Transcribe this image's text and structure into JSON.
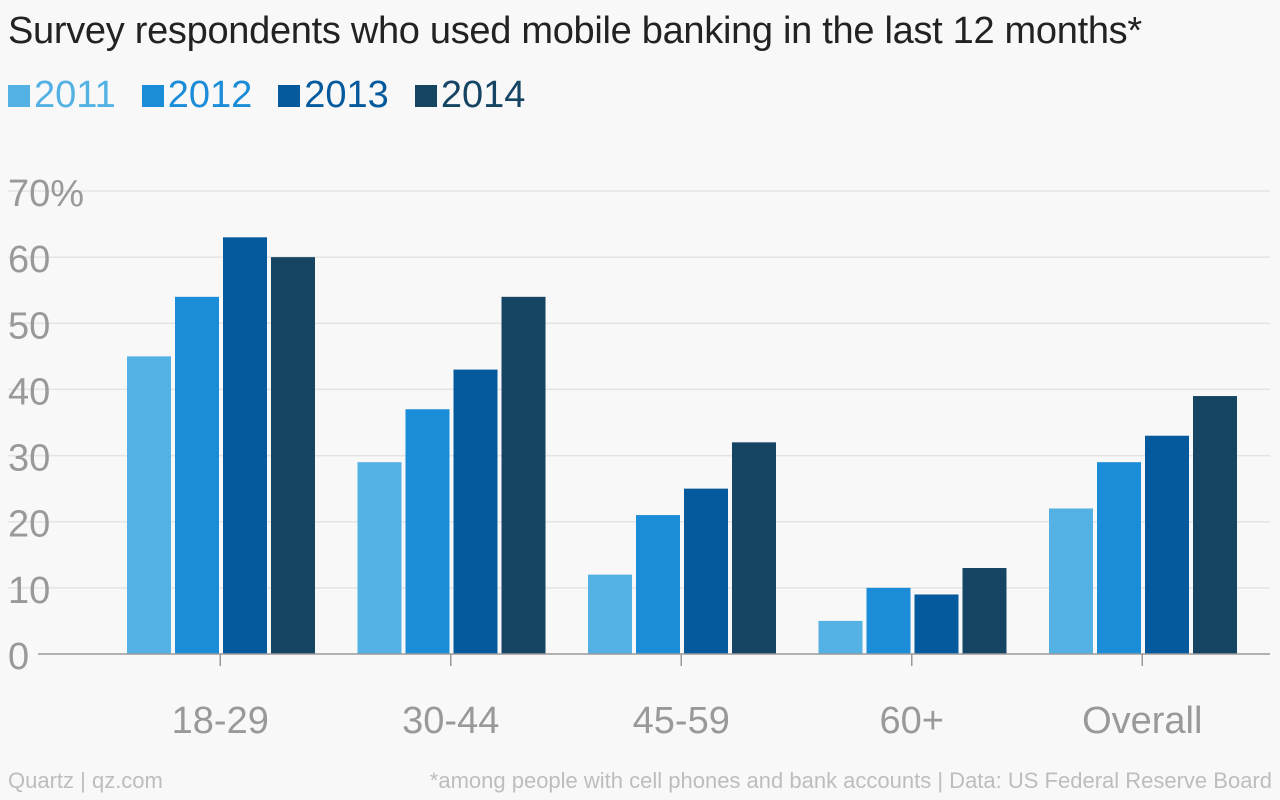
{
  "chart_data": {
    "type": "bar",
    "title": "Survey respondents who used mobile banking in the last 12 months*",
    "categories": [
      "18-29",
      "30-44",
      "45-59",
      "60+",
      "Overall"
    ],
    "series": [
      {
        "name": "2011",
        "color": "#53b1e4",
        "values": [
          45,
          29,
          12,
          5,
          22
        ]
      },
      {
        "name": "2012",
        "color": "#1a8cd8",
        "values": [
          54,
          37,
          21,
          10,
          29
        ]
      },
      {
        "name": "2013",
        "color": "#045a9c",
        "values": [
          63,
          43,
          25,
          9,
          33
        ]
      },
      {
        "name": "2014",
        "color": "#164564",
        "values": [
          60,
          54,
          32,
          13,
          39
        ]
      }
    ],
    "ylim": [
      0,
      70
    ],
    "yticks": [
      0,
      10,
      20,
      30,
      40,
      50,
      60,
      70
    ],
    "ytick_labels": [
      "0",
      "10",
      "20",
      "30",
      "40",
      "50",
      "60",
      "70%"
    ],
    "xlabel": "",
    "ylabel": "",
    "grid": true,
    "legend_position": "top-left"
  },
  "footer": {
    "source_left": "Quartz | qz.com",
    "note_right": "*among people with cell phones and bank accounts | Data: US Federal Reserve Board"
  },
  "colors": {
    "background": "#f8f8f8",
    "gridline": "#e4e4e4",
    "axis": "#999999",
    "tick_label": "#999999",
    "title": "#222222"
  }
}
